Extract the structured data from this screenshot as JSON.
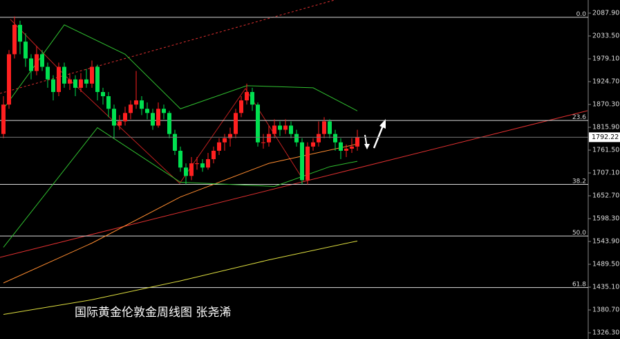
{
  "chart_data": {
    "type": "candlestick",
    "title": "国际黄金伦敦金周线图  张尧浠",
    "ylim": [
      1311.5,
      2119.2
    ],
    "yticks": [
      {
        "value": 2087.9,
        "label": "2087.90"
      },
      {
        "value": 2033.5,
        "label": "2033.50"
      },
      {
        "value": 1979.1,
        "label": "1979.10"
      },
      {
        "value": 1924.7,
        "label": "1924.70"
      },
      {
        "value": 1870.3,
        "label": "1870.30"
      },
      {
        "value": 1815.9,
        "label": "1815.90"
      },
      {
        "value": 1761.5,
        "label": "1761.50"
      },
      {
        "value": 1707.1,
        "label": "1707.10"
      },
      {
        "value": 1652.7,
        "label": "1652.70"
      },
      {
        "value": 1598.3,
        "label": "1598.30"
      },
      {
        "value": 1543.9,
        "label": "1543.90"
      },
      {
        "value": 1489.5,
        "label": "1489.50"
      },
      {
        "value": 1435.1,
        "label": "1435.10"
      },
      {
        "value": 1380.7,
        "label": "1380.70"
      },
      {
        "value": 1326.3,
        "label": "1326.30"
      }
    ],
    "current_price": 1792.22,
    "up_color": "#ff2020",
    "down_color": "#00e050",
    "fib_levels": [
      {
        "value": 2078.0,
        "label": "0.0"
      },
      {
        "value": 1832.1,
        "label": "23.6"
      },
      {
        "value": 1680.0,
        "label": "38.2"
      },
      {
        "value": 1557.0,
        "label": "50.0"
      },
      {
        "value": 1434.0,
        "label": "61.8"
      }
    ],
    "candles": [
      [
        1800,
        1890,
        1790,
        1870
      ],
      [
        1870,
        2000,
        1860,
        1990
      ],
      [
        1990,
        2080,
        1980,
        2060
      ],
      [
        2060,
        2070,
        1990,
        2020
      ],
      [
        2020,
        2040,
        1960,
        1980
      ],
      [
        1980,
        1990,
        1930,
        1950
      ],
      [
        1950,
        2010,
        1940,
        1990
      ],
      [
        1990,
        2000,
        1950,
        1960
      ],
      [
        1960,
        1970,
        1910,
        1930
      ],
      [
        1930,
        1940,
        1880,
        1900
      ],
      [
        1900,
        1970,
        1890,
        1960
      ],
      [
        1960,
        1970,
        1910,
        1920
      ],
      [
        1920,
        1945,
        1905,
        1930
      ],
      [
        1930,
        1940,
        1890,
        1910
      ],
      [
        1910,
        1945,
        1900,
        1930
      ],
      [
        1930,
        1955,
        1910,
        1920
      ],
      [
        1920,
        1975,
        1910,
        1960
      ],
      [
        1960,
        1965,
        1880,
        1900
      ],
      [
        1900,
        1910,
        1870,
        1890
      ],
      [
        1890,
        1900,
        1840,
        1860
      ],
      [
        1860,
        1870,
        1790,
        1820
      ],
      [
        1820,
        1845,
        1810,
        1830
      ],
      [
        1830,
        1865,
        1820,
        1850
      ],
      [
        1850,
        1880,
        1835,
        1870
      ],
      [
        1870,
        1950,
        1860,
        1880
      ],
      [
        1880,
        1890,
        1845,
        1860
      ],
      [
        1860,
        1875,
        1835,
        1850
      ],
      [
        1850,
        1860,
        1810,
        1820
      ],
      [
        1820,
        1875,
        1815,
        1860
      ],
      [
        1860,
        1870,
        1835,
        1850
      ],
      [
        1850,
        1855,
        1790,
        1800
      ],
      [
        1800,
        1810,
        1750,
        1760
      ],
      [
        1760,
        1770,
        1710,
        1720
      ],
      [
        1720,
        1730,
        1680,
        1700
      ],
      [
        1700,
        1745,
        1690,
        1730
      ],
      [
        1730,
        1745,
        1715,
        1730
      ],
      [
        1730,
        1740,
        1710,
        1720
      ],
      [
        1720,
        1755,
        1715,
        1740
      ],
      [
        1740,
        1770,
        1730,
        1760
      ],
      [
        1760,
        1790,
        1750,
        1780
      ],
      [
        1780,
        1800,
        1760,
        1790
      ],
      [
        1790,
        1815,
        1770,
        1800
      ],
      [
        1800,
        1860,
        1790,
        1850
      ],
      [
        1850,
        1890,
        1840,
        1880
      ],
      [
        1880,
        1920,
        1870,
        1900
      ],
      [
        1900,
        1910,
        1855,
        1870
      ],
      [
        1870,
        1875,
        1770,
        1780
      ],
      [
        1780,
        1800,
        1765,
        1780
      ],
      [
        1780,
        1820,
        1770,
        1800
      ],
      [
        1800,
        1835,
        1790,
        1820
      ],
      [
        1820,
        1830,
        1795,
        1810
      ],
      [
        1810,
        1835,
        1800,
        1820
      ],
      [
        1820,
        1830,
        1790,
        1800
      ],
      [
        1800,
        1810,
        1770,
        1780
      ],
      [
        1780,
        1790,
        1680,
        1690
      ],
      [
        1690,
        1780,
        1680,
        1770
      ],
      [
        1770,
        1790,
        1760,
        1780
      ],
      [
        1780,
        1830,
        1770,
        1800
      ],
      [
        1800,
        1840,
        1790,
        1830
      ],
      [
        1830,
        1835,
        1790,
        1800
      ],
      [
        1800,
        1810,
        1760,
        1780
      ],
      [
        1780,
        1790,
        1740,
        1760
      ],
      [
        1760,
        1775,
        1745,
        1765
      ],
      [
        1765,
        1790,
        1755,
        1770
      ],
      [
        1770,
        1810,
        1760,
        1792.22
      ]
    ],
    "lines": [
      {
        "color": "#e0e040",
        "x": [
          0,
          16,
          32,
          48,
          64
        ],
        "values": [
          1370,
          1405,
          1450,
          1500,
          1545
        ]
      },
      {
        "color": "#ff8c30",
        "x": [
          0,
          16,
          32,
          48,
          64
        ],
        "values": [
          1445,
          1540,
          1650,
          1730,
          1776
        ]
      },
      {
        "color": "#30c030",
        "x": [
          0,
          11,
          22,
          32,
          44,
          56,
          64
        ],
        "values": [
          1860,
          2060,
          1990,
          1860,
          1915,
          1910,
          1855
        ]
      },
      {
        "color": "#30c030",
        "x": [
          0,
          17,
          32,
          49,
          59,
          64
        ],
        "values": [
          1530,
          1815,
          1685,
          1675,
          1722,
          1735
        ]
      }
    ]
  }
}
